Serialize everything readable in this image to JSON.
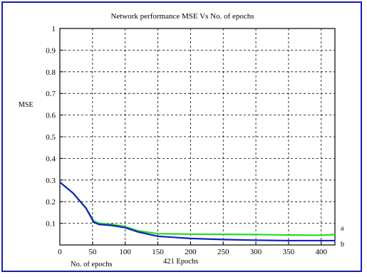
{
  "chart_data": {
    "type": "line",
    "title": "Network performance   MSE Vs No. of epochs",
    "ylabel": "MSE",
    "xlabel": "No. of epochs",
    "x_annotation": "421 Epochs",
    "xlim": [
      0,
      421
    ],
    "ylim": [
      0,
      1
    ],
    "x_ticks": [
      0,
      50,
      100,
      150,
      200,
      250,
      300,
      350,
      400
    ],
    "y_ticks": [
      0.1,
      0.2,
      0.3,
      0.4,
      0.5,
      0.6,
      0.7,
      0.8,
      0.9,
      1
    ],
    "y_tick_labels": [
      "0.1",
      "0.2",
      "0.3",
      "0.4",
      "0.5",
      "0.6",
      "0.7",
      "0.8",
      "0.9",
      "1"
    ],
    "grid": true,
    "series": [
      {
        "name": "a",
        "color": "#22dd22",
        "x": [
          0,
          20,
          40,
          52,
          60,
          80,
          100,
          120,
          150,
          200,
          250,
          300,
          350,
          400,
          421
        ],
        "y": [
          0.29,
          0.24,
          0.17,
          0.11,
          0.1,
          0.095,
          0.085,
          0.065,
          0.052,
          0.05,
          0.049,
          0.048,
          0.046,
          0.045,
          0.048
        ]
      },
      {
        "name": "b",
        "color": "#1020c0",
        "x": [
          0,
          20,
          40,
          52,
          60,
          80,
          100,
          120,
          150,
          200,
          250,
          300,
          350,
          400,
          421
        ],
        "y": [
          0.29,
          0.24,
          0.17,
          0.105,
          0.095,
          0.09,
          0.08,
          0.06,
          0.04,
          0.03,
          0.025,
          0.022,
          0.02,
          0.02,
          0.02
        ]
      }
    ]
  }
}
